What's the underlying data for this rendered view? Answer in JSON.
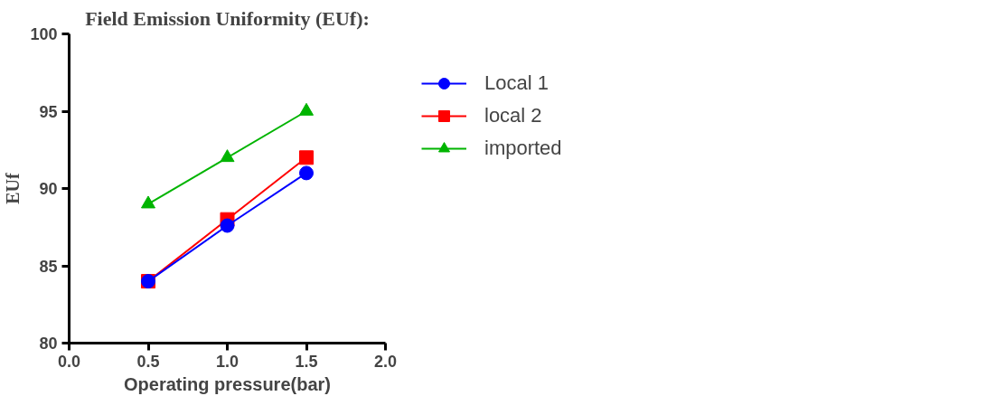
{
  "chart_data": {
    "type": "line",
    "title": "Field Emission Uniformity (EUf):",
    "xlabel": "Operating pressure(bar)",
    "ylabel": "EUf",
    "x": [
      0.5,
      1.0,
      1.5
    ],
    "series": [
      {
        "name": "Local 1",
        "color": "#0000ff",
        "marker": "circle",
        "values": [
          84,
          87.6,
          91
        ]
      },
      {
        "name": "local 2",
        "color": "#ff0000",
        "marker": "square",
        "values": [
          84,
          88,
          92
        ]
      },
      {
        "name": "imported",
        "color": "#00b400",
        "marker": "triangle",
        "values": [
          89,
          92,
          95
        ]
      }
    ],
    "xlim": [
      0,
      2
    ],
    "xticks": [
      {
        "value": 0,
        "label": "0.0"
      },
      {
        "value": 0.5,
        "label": "0.5"
      },
      {
        "value": 1,
        "label": "1.0"
      },
      {
        "value": 1.5,
        "label": "1.5"
      },
      {
        "value": 2,
        "label": "2.0"
      }
    ],
    "ylim": [
      80,
      100
    ],
    "yticks": [
      80,
      85,
      90,
      95,
      100
    ],
    "grid": false,
    "legend": "right",
    "line_style": "solid"
  }
}
